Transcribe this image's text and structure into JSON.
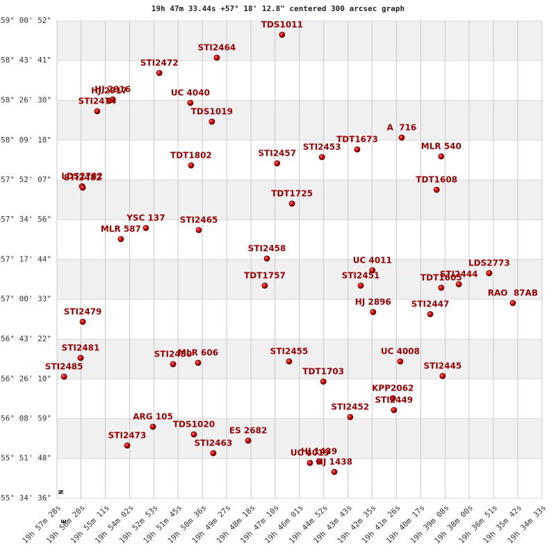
{
  "chart_data": {
    "type": "scatter",
    "title": "19h 47m 33.44s +57° 18' 12.8\" centered 300 arcsec graph",
    "compass": {
      "north": "N",
      "east": "E"
    },
    "color": "#cc0000",
    "label_color": "#990000",
    "grid": true,
    "labels": [
      "TDS1011",
      "STI2464",
      "STI2472",
      "HJ 2916",
      "HJ 2917",
      "STI2474",
      "UC 4040",
      "TDS1019",
      "A  716",
      "TDT1673",
      "STI2453",
      "STI2457",
      "MLR 540",
      "TDT1802",
      "LDS2782",
      "STI2482",
      "TDT1608",
      "TDT1725",
      "YSC 137",
      "STI2465",
      "MLR 587",
      "STI2458",
      "UC 4011",
      "LDS2773",
      "TDT1757",
      "STI2451",
      "TDT1605",
      "STI2444",
      "RAO  87AB",
      "HJ 2896",
      "STI2447",
      "STI2479",
      "STI2481",
      "STI2480",
      "MLR 606",
      "STI2455",
      "UC 4008",
      "STI2485",
      "STI2445",
      "TDT1703",
      "KPP2062",
      "STI2449",
      "STI2452",
      "ARG 105",
      "TDS1020",
      "STI2473",
      "ES 2682",
      "STI2463",
      "UC 4019",
      "HJ 1439",
      "HJ 1438"
    ],
    "x": [
      2810,
      2995,
      3158,
      3290,
      3300,
      3334,
      3070,
      3009,
      2471,
      2597,
      2697,
      2824,
      2359,
      3068,
      3377,
      3375,
      2372,
      2782,
      3196,
      3046,
      3267,
      2853,
      2554,
      2223,
      2859,
      2587,
      2359,
      2309,
      2156,
      2552,
      2390,
      3375,
      3381,
      3119,
      3048,
      2790,
      2475,
      3428,
      2355,
      2693,
      2496,
      2493,
      2617,
      3176,
      3060,
      3249,
      2906,
      3005,
      2731,
      2705,
      2662
    ],
    "y": [
      212092,
      211497,
      211101,
      210416,
      210380,
      210110,
      210326,
      209840,
      209425,
      209119,
      208921,
      208759,
      208939,
      208705,
      208164,
      208128,
      208074,
      207714,
      207084,
      207029,
      206795,
      206291,
      205985,
      205913,
      205588,
      205588,
      205534,
      205624,
      205138,
      204904,
      204850,
      204652,
      203715,
      203553,
      203589,
      203625,
      203625,
      203228,
      203246,
      203102,
      202670,
      202364,
      202183,
      201931,
      201733,
      201445,
      201571,
      201247,
      200994,
      201030,
      200760
    ],
    "xlim": [
      3448,
      2073
    ],
    "ylim": [
      200076,
      212452
    ],
    "xticks": [
      {
        "value": 3448,
        "label": "19h 57m 28s"
      },
      {
        "value": 3380,
        "label": "19h 56m 20s"
      },
      {
        "value": 3311,
        "label": "19h 55m 11s"
      },
      {
        "value": 3242,
        "label": "19h 54m 02s"
      },
      {
        "value": 3173,
        "label": "19h 52m 53s"
      },
      {
        "value": 3105,
        "label": "19h 51m 45s"
      },
      {
        "value": 3036,
        "label": "19h 50m 36s"
      },
      {
        "value": 2967,
        "label": "19h 49m 27s"
      },
      {
        "value": 2898,
        "label": "19h 48m 18s"
      },
      {
        "value": 2830,
        "label": "19h 47m 10s"
      },
      {
        "value": 2761,
        "label": "19h 46m 01s"
      },
      {
        "value": 2692,
        "label": "19h 44m 52s"
      },
      {
        "value": 2623,
        "label": "19h 43m 43s"
      },
      {
        "value": 2555,
        "label": "19h 42m 35s"
      },
      {
        "value": 2486,
        "label": "19h 41m 26s"
      },
      {
        "value": 2417,
        "label": "19h 40m 17s"
      },
      {
        "value": 2348,
        "label": "19h 39m 08s"
      },
      {
        "value": 2280,
        "label": "19h 38m 00s"
      },
      {
        "value": 2211,
        "label": "19h 36m 51s"
      },
      {
        "value": 2142,
        "label": "19h 35m 42s"
      },
      {
        "value": 2073,
        "label": "19h 34m 33s"
      }
    ],
    "yticks": [
      {
        "value": 200076,
        "label": "+55° 34' 36\""
      },
      {
        "value": 201108,
        "label": "+55° 51' 48\""
      },
      {
        "value": 202139,
        "label": "+56° 08' 59\""
      },
      {
        "value": 203170,
        "label": "+56° 26' 10\""
      },
      {
        "value": 204202,
        "label": "+56° 43' 22\""
      },
      {
        "value": 205233,
        "label": "+57° 00' 33\""
      },
      {
        "value": 206264,
        "label": "+57° 17' 44\""
      },
      {
        "value": 207296,
        "label": "+57° 34' 56\""
      },
      {
        "value": 208327,
        "label": "+57° 52' 07\""
      },
      {
        "value": 209358,
        "label": "+58° 09' 18\""
      },
      {
        "value": 210390,
        "label": "+58° 26' 30\""
      },
      {
        "value": 211421,
        "label": "+58° 43' 41\""
      },
      {
        "value": 212452,
        "label": "+59° 00' 52\""
      }
    ]
  }
}
